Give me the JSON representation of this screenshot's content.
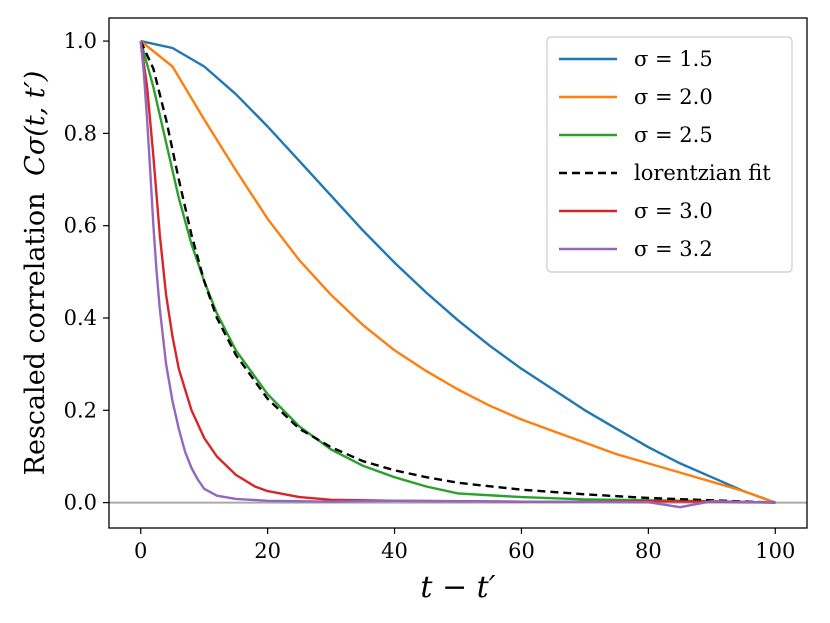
{
  "chart_data": {
    "type": "line",
    "title": "",
    "xlabel": "t − t′",
    "ylabel": "Rescaled correlation",
    "ylabel_math": "Cσ(t, t′)",
    "xlim": [
      -5,
      105
    ],
    "ylim": [
      -0.055,
      1.05
    ],
    "xticks": [
      0,
      20,
      40,
      60,
      80,
      100
    ],
    "yticks": [
      0.0,
      0.2,
      0.4,
      0.6,
      0.8,
      1.0
    ],
    "xtick_labels": [
      "0",
      "20",
      "40",
      "60",
      "80",
      "100"
    ],
    "ytick_labels": [
      "0.0",
      "0.2",
      "0.4",
      "0.6",
      "0.8",
      "1.0"
    ],
    "grid": false,
    "legend_position": "top-right",
    "reference_line": {
      "y": 0.0,
      "color": "#aaaaaa"
    },
    "series": [
      {
        "name": "σ = 1.5",
        "color": "#1f77b4",
        "dashed": false,
        "x": [
          0,
          5,
          10,
          15,
          20,
          25,
          30,
          35,
          40,
          45,
          50,
          55,
          60,
          65,
          70,
          75,
          80,
          85,
          90,
          95,
          100
        ],
        "y": [
          1.0,
          0.985,
          0.945,
          0.885,
          0.815,
          0.74,
          0.665,
          0.59,
          0.52,
          0.455,
          0.395,
          0.34,
          0.29,
          0.245,
          0.2,
          0.16,
          0.12,
          0.085,
          0.055,
          0.025,
          0.0
        ]
      },
      {
        "name": "σ = 2.0",
        "color": "#ff7f0e",
        "dashed": false,
        "x": [
          0,
          5,
          10,
          15,
          20,
          25,
          30,
          35,
          40,
          45,
          50,
          55,
          60,
          65,
          70,
          75,
          80,
          85,
          90,
          95,
          100
        ],
        "y": [
          1.0,
          0.945,
          0.83,
          0.72,
          0.615,
          0.525,
          0.45,
          0.385,
          0.33,
          0.285,
          0.245,
          0.21,
          0.18,
          0.155,
          0.13,
          0.105,
          0.085,
          0.065,
          0.045,
          0.025,
          0.0
        ]
      },
      {
        "name": "σ = 2.5",
        "color": "#2ca02c",
        "dashed": false,
        "x": [
          0,
          2,
          4,
          6,
          8,
          10,
          12,
          15,
          20,
          25,
          30,
          35,
          40,
          45,
          50,
          60,
          70,
          80,
          90,
          100
        ],
        "y": [
          1.0,
          0.9,
          0.78,
          0.66,
          0.56,
          0.48,
          0.41,
          0.33,
          0.235,
          0.165,
          0.115,
          0.08,
          0.055,
          0.035,
          0.02,
          0.012,
          0.007,
          0.005,
          0.003,
          0.0
        ]
      },
      {
        "name": "lorentzian fit",
        "color": "#000000",
        "dashed": true,
        "x": [
          0,
          2,
          4,
          6,
          8,
          10,
          12,
          15,
          20,
          25,
          30,
          35,
          40,
          45,
          50,
          60,
          70,
          80,
          90,
          100
        ],
        "y": [
          1.0,
          0.94,
          0.83,
          0.7,
          0.58,
          0.48,
          0.4,
          0.32,
          0.225,
          0.16,
          0.12,
          0.09,
          0.07,
          0.055,
          0.043,
          0.028,
          0.018,
          0.01,
          0.005,
          0.0
        ]
      },
      {
        "name": "σ = 3.0",
        "color": "#d62728",
        "dashed": false,
        "x": [
          0,
          1,
          2,
          3,
          4,
          5,
          6,
          8,
          10,
          12,
          15,
          18,
          20,
          25,
          30,
          40,
          50,
          60,
          70,
          80,
          90,
          100
        ],
        "y": [
          1.0,
          0.9,
          0.75,
          0.58,
          0.45,
          0.36,
          0.29,
          0.2,
          0.14,
          0.1,
          0.06,
          0.035,
          0.025,
          0.012,
          0.006,
          0.004,
          0.003,
          0.002,
          0.002,
          0.003,
          0.002,
          0.0
        ]
      },
      {
        "name": "σ = 3.2",
        "color": "#9467bd",
        "dashed": false,
        "x": [
          0,
          0.5,
          1,
          1.5,
          2,
          2.5,
          3,
          4,
          5,
          6,
          7,
          8,
          9,
          10,
          12,
          15,
          20,
          30,
          40,
          50,
          60,
          70,
          80,
          85,
          90,
          100
        ],
        "y": [
          1.0,
          0.93,
          0.83,
          0.72,
          0.6,
          0.5,
          0.42,
          0.3,
          0.22,
          0.16,
          0.11,
          0.075,
          0.05,
          0.03,
          0.015,
          0.008,
          0.004,
          0.002,
          0.004,
          0.003,
          0.002,
          0.002,
          0.001,
          -0.01,
          0.003,
          0.0
        ]
      }
    ]
  }
}
